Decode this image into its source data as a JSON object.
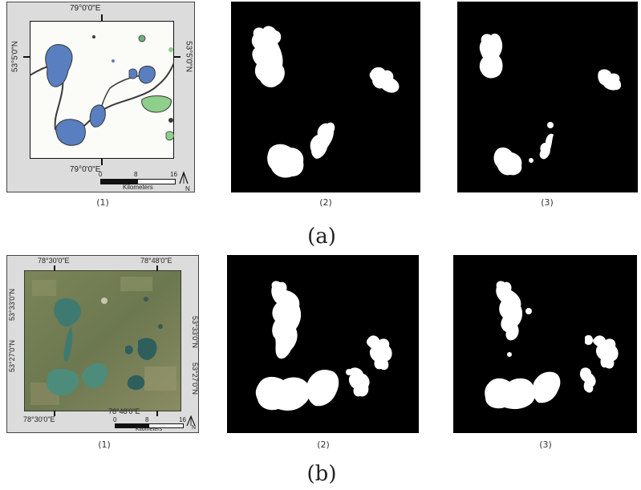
{
  "figure": {
    "panel_a": {
      "label": "(a)",
      "sublabels": [
        "(1)",
        "(2)",
        "(3)"
      ],
      "map": {
        "top_coord": "79°0'0\"E",
        "bottom_coord": "79°0'0\"E",
        "left_coord": "53°5'0\"N",
        "right_coord": "53°5'0\"N",
        "scale_ticks": [
          "0",
          "8",
          "16"
        ],
        "scale_unit": "Kilometers",
        "north": "N"
      }
    },
    "panel_b": {
      "label": "(b)",
      "sublabels": [
        "(1)",
        "(2)",
        "(3)"
      ],
      "map": {
        "top_coords": [
          "78°30'0\"E",
          "78°48'0\"E"
        ],
        "bottom_coords": [
          "78°30'0\"E",
          "78°48'0\"E"
        ],
        "left_coords": [
          "53°33'0\"N",
          "53°27'0\"N"
        ],
        "right_coords": [
          "53°33'0\"N",
          "53°27'0\"N"
        ],
        "scale_ticks": [
          "0",
          "8",
          "16"
        ],
        "scale_unit": "Kilometers",
        "north": "N"
      }
    },
    "colors": {
      "lake_blue": "#5a7fc0",
      "vegetation_green": "#8fcf8c",
      "satellite_base": "#6f7a52",
      "water_mask": "#ffffff",
      "background_mask": "#000000"
    }
  }
}
